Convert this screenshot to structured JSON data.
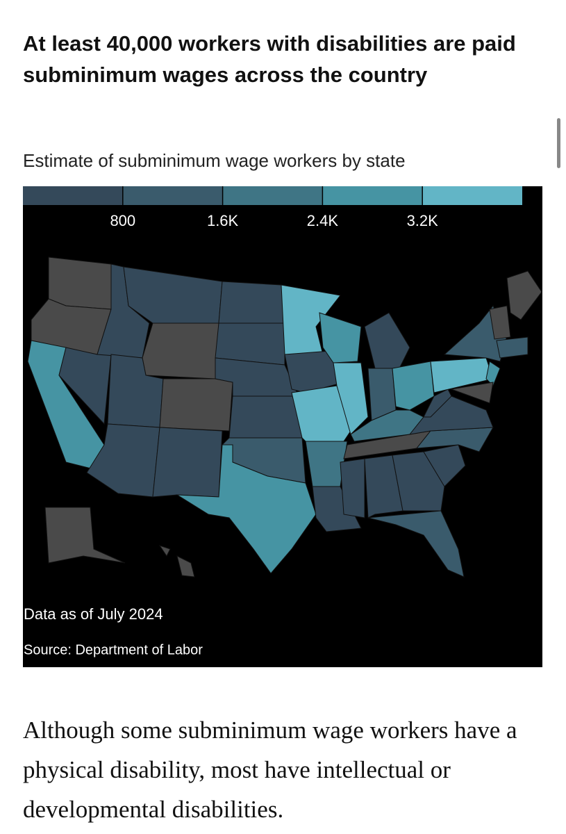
{
  "header": {
    "title": "At least 40,000 workers with disabilities are paid subminimum wages across the country",
    "subtitle": "Estimate of subminimum wage workers by state"
  },
  "legend": {
    "colors": [
      "#34495a",
      "#3a5b6c",
      "#3f7585",
      "#4694a3",
      "#62b5c6"
    ],
    "no_data_color": "#4a4a4a",
    "range": [
      0,
      4000
    ],
    "ticks": [
      {
        "value": 800,
        "label": "800"
      },
      {
        "value": 1600,
        "label": "1.6K"
      },
      {
        "value": 2400,
        "label": "2.4K"
      },
      {
        "value": 3200,
        "label": "3.2K"
      }
    ]
  },
  "notes": {
    "date": "Data as of July 2024",
    "source": "Source: Department of Labor"
  },
  "body": {
    "paragraph": "Although some subminimum wage workers have a physical disability, most have intellectual or developmental disabilities."
  }
}
